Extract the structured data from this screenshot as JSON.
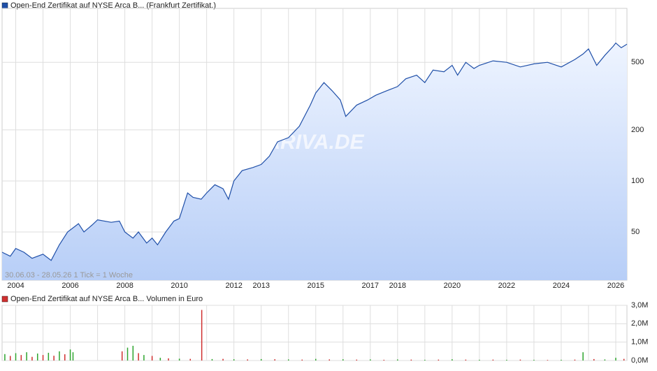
{
  "chart_data": [
    {
      "type": "area",
      "title": "Open-End Zertifikat auf NYSE Arca B... (Frankfurt Zertifikat.)",
      "annotation": "30.06.03 - 28.05.26   1 Tick = 1 Woche",
      "watermark": "ARIVA.DE",
      "color": "#1f4fa8",
      "log": true,
      "grid": true,
      "x": [
        2003.5,
        2003.8,
        2004.0,
        2004.3,
        2004.6,
        2005.0,
        2005.3,
        2005.6,
        2005.9,
        2006.3,
        2006.5,
        2006.8,
        2007.0,
        2007.5,
        2007.8,
        2008.0,
        2008.3,
        2008.5,
        2008.8,
        2009.0,
        2009.2,
        2009.5,
        2009.8,
        2010.0,
        2010.3,
        2010.5,
        2010.8,
        2011.0,
        2011.3,
        2011.6,
        2011.8,
        2012.0,
        2012.3,
        2012.7,
        2013.0,
        2013.3,
        2013.6,
        2014.0,
        2014.4,
        2014.8,
        2015.0,
        2015.3,
        2015.6,
        2015.9,
        2016.1,
        2016.5,
        2016.9,
        2017.2,
        2017.6,
        2018.0,
        2018.3,
        2018.7,
        2019.0,
        2019.3,
        2019.7,
        2020.0,
        2020.2,
        2020.5,
        2020.8,
        2021.0,
        2021.5,
        2022.0,
        2022.5,
        2023.0,
        2023.5,
        2024.0,
        2024.5,
        2024.8,
        2025.0,
        2025.3,
        2025.6,
        2025.9,
        2026.0,
        2026.2,
        2026.41
      ],
      "values": [
        38,
        36,
        40,
        38,
        35,
        37,
        34,
        42,
        50,
        56,
        50,
        55,
        59,
        57,
        58,
        50,
        46,
        50,
        43,
        46,
        42,
        50,
        58,
        60,
        85,
        80,
        78,
        85,
        95,
        90,
        78,
        100,
        115,
        120,
        125,
        140,
        170,
        180,
        210,
        280,
        330,
        380,
        340,
        300,
        240,
        280,
        300,
        320,
        340,
        360,
        400,
        420,
        380,
        450,
        440,
        480,
        420,
        500,
        460,
        480,
        510,
        500,
        470,
        490,
        500,
        470,
        520,
        560,
        600,
        480,
        550,
        620,
        650,
        610,
        640
      ],
      "xlim": [
        2003.5,
        2026.41
      ],
      "xticks": [
        2004,
        2006,
        2008,
        2010,
        2012,
        2013,
        2015,
        2017,
        2018,
        2020,
        2022,
        2024,
        2026
      ],
      "minor_xticks": [
        2005,
        2007,
        2009,
        2011,
        2014,
        2016,
        2019,
        2021,
        2023,
        2025
      ],
      "ylim": [
        26,
        1040
      ],
      "yticks": [
        50,
        100,
        200,
        500
      ]
    },
    {
      "type": "bar",
      "title": "Open-End Zertifikat auf NYSE Arca B... Volumen in Euro",
      "grid": true,
      "x": [
        2003.6,
        2003.8,
        2004.0,
        2004.2,
        2004.4,
        2004.6,
        2004.8,
        2005.0,
        2005.2,
        2005.4,
        2005.6,
        2005.8,
        2006.0,
        2006.1,
        2007.9,
        2008.1,
        2008.3,
        2008.5,
        2008.7,
        2009.0,
        2009.3,
        2009.6,
        2010.0,
        2010.4,
        2010.82,
        2011.2,
        2011.6,
        2012.0,
        2012.5,
        2013.0,
        2013.5,
        2014.0,
        2014.5,
        2015.0,
        2015.5,
        2016.0,
        2016.5,
        2017.0,
        2017.5,
        2018.0,
        2018.5,
        2019.0,
        2019.5,
        2020.0,
        2020.5,
        2021.0,
        2021.5,
        2022.0,
        2022.5,
        2023.0,
        2023.5,
        2024.0,
        2024.5,
        2024.8,
        2025.2,
        2025.6,
        2026.0,
        2026.3
      ],
      "values": [
        350000,
        250000,
        400000,
        300000,
        450000,
        200000,
        380000,
        300000,
        420000,
        260000,
        500000,
        340000,
        600000,
        450000,
        500000,
        700000,
        800000,
        400000,
        300000,
        250000,
        150000,
        120000,
        100000,
        90000,
        2750000,
        80000,
        90000,
        70000,
        60000,
        80000,
        70000,
        60000,
        50000,
        90000,
        60000,
        70000,
        50000,
        60000,
        40000,
        60000,
        50000,
        40000,
        50000,
        70000,
        50000,
        40000,
        50000,
        40000,
        50000,
        40000,
        30000,
        40000,
        50000,
        450000,
        80000,
        60000,
        150000,
        90000
      ],
      "colors": [
        "#2ea52e",
        "#d03030",
        "#2ea52e",
        "#d03030",
        "#2ea52e",
        "#d03030",
        "#2ea52e",
        "#d03030",
        "#2ea52e",
        "#d03030",
        "#2ea52e",
        "#d03030",
        "#2ea52e",
        "#2ea52e",
        "#d03030",
        "#2ea52e",
        "#2ea52e",
        "#d03030",
        "#2ea52e",
        "#d03030",
        "#2ea52e",
        "#d03030",
        "#2ea52e",
        "#d03030",
        "#d03030",
        "#2ea52e",
        "#d03030",
        "#2ea52e",
        "#d03030",
        "#2ea52e",
        "#d03030",
        "#2ea52e",
        "#d03030",
        "#2ea52e",
        "#d03030",
        "#2ea52e",
        "#d03030",
        "#2ea52e",
        "#d03030",
        "#2ea52e",
        "#d03030",
        "#2ea52e",
        "#d03030",
        "#2ea52e",
        "#d03030",
        "#2ea52e",
        "#d03030",
        "#2ea52e",
        "#d03030",
        "#2ea52e",
        "#d03030",
        "#2ea52e",
        "#d03030",
        "#2ea52e",
        "#d03030",
        "#2ea52e",
        "#2ea52e",
        "#d03030"
      ],
      "xlim": [
        2003.5,
        2026.41
      ],
      "ylim": [
        0,
        3000000
      ],
      "yticks": [
        {
          "value": 0,
          "label": "0,0M"
        },
        {
          "value": 1000000,
          "label": "1,0M"
        },
        {
          "value": 2000000,
          "label": "2,0M"
        },
        {
          "value": 3000000,
          "label": "3,0M"
        }
      ]
    }
  ]
}
